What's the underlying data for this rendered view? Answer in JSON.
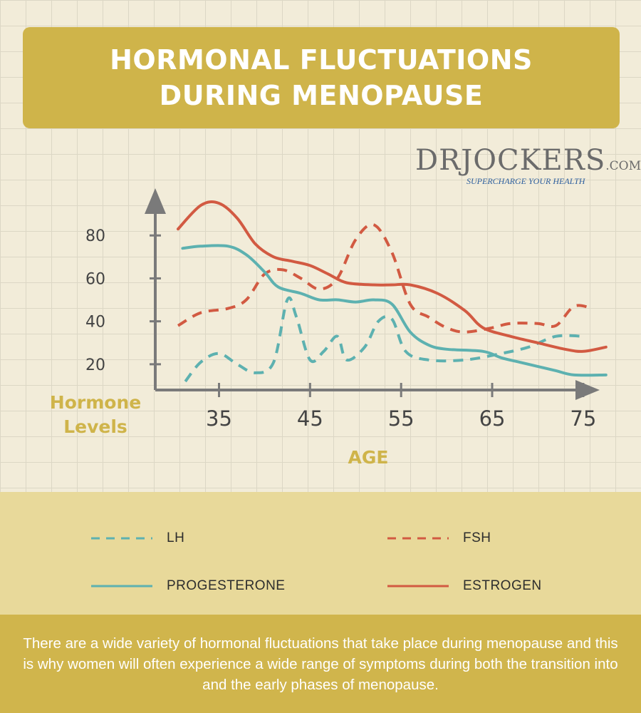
{
  "header": {
    "title": "HORMONAL FLUCTUATIONS\nDURING MENOPAUSE"
  },
  "logo": {
    "main": "DRJOCKERS",
    "domain": ".COM",
    "tagline": "SUPERCHARGE YOUR HEALTH"
  },
  "chart_data": {
    "type": "line",
    "title": "HORMONAL FLUCTUATIONS DURING MENOPAUSE",
    "ylabel": "Hormone Levels",
    "xlabel": "AGE",
    "x_ticks": [
      35,
      45,
      55,
      65,
      75
    ],
    "y_ticks": [
      20,
      40,
      60,
      80
    ],
    "xlim": [
      28,
      79
    ],
    "ylim": [
      8,
      100
    ],
    "grid": true,
    "legend_position": "bottom",
    "series": [
      {
        "name": "LH",
        "style": "dashed",
        "color": "#5db1b0",
        "x": [
          31.3,
          33,
          35,
          37,
          39,
          41,
          42.5,
          43.5,
          45,
          46.5,
          48,
          49,
          51,
          52.5,
          54,
          55.5,
          58,
          62,
          66,
          69,
          72,
          75
        ],
        "y": [
          12,
          21,
          25,
          20,
          16,
          21,
          50,
          42,
          22,
          26,
          33,
          22,
          28,
          40,
          41,
          26,
          22,
          22,
          25,
          28,
          33,
          33
        ]
      },
      {
        "name": "FSH",
        "style": "dashed",
        "color": "#d25a42",
        "x": [
          30.5,
          33,
          36,
          38,
          40,
          42,
          44,
          46,
          48,
          50,
          52,
          54,
          56,
          58,
          60,
          62,
          65,
          67,
          70,
          72,
          74,
          76
        ],
        "y": [
          38,
          44,
          46,
          50,
          62,
          64,
          60,
          55,
          60,
          78,
          85,
          72,
          48,
          42,
          37,
          35,
          37,
          39,
          39,
          38,
          47,
          46
        ]
      },
      {
        "name": "PROGESTERONE",
        "style": "solid",
        "color": "#5db1b0",
        "x": [
          31,
          33,
          36,
          38,
          40,
          41.5,
          44,
          46,
          48,
          50,
          52,
          54,
          56,
          58,
          60,
          64,
          66,
          68,
          70,
          72,
          74,
          77.5
        ],
        "y": [
          74,
          75,
          75,
          71,
          63,
          56,
          53,
          50,
          50,
          49,
          50,
          48,
          35,
          29,
          27,
          26,
          23,
          21,
          19,
          17,
          15,
          15
        ]
      },
      {
        "name": "ESTROGEN",
        "style": "solid",
        "color": "#d25a42",
        "x": [
          30.5,
          33,
          35,
          37,
          39,
          41,
          43,
          45,
          47,
          49,
          52,
          54,
          56,
          59,
          62,
          64,
          67,
          70,
          73,
          75,
          77.5
        ],
        "y": [
          83,
          94,
          95,
          88,
          76,
          70,
          68,
          66,
          62,
          58,
          57,
          57,
          57,
          53,
          45,
          37,
          33,
          30,
          27,
          26,
          28
        ]
      }
    ]
  },
  "legend": {
    "items": [
      {
        "label": "LH",
        "style": "dashed",
        "color": "#5db1b0"
      },
      {
        "label": "FSH",
        "style": "dashed",
        "color": "#d25a42"
      },
      {
        "label": "PROGESTERONE",
        "style": "solid",
        "color": "#5db1b0"
      },
      {
        "label": "ESTROGEN",
        "style": "solid",
        "color": "#d25a42"
      }
    ]
  },
  "footer": {
    "text": "There are a wide variety of hormonal fluctuations that take place during menopause and this is why women will often experience a wide range of symptoms during both the transition into and the early phases of menopause."
  },
  "colors": {
    "background": "#f2ecd9",
    "title_bar": "#cfb44a",
    "legend_band": "#e8d99a",
    "footer_band": "#d0b54c",
    "axis": "#7a7a7a",
    "axis_title": "#cfb44a"
  }
}
